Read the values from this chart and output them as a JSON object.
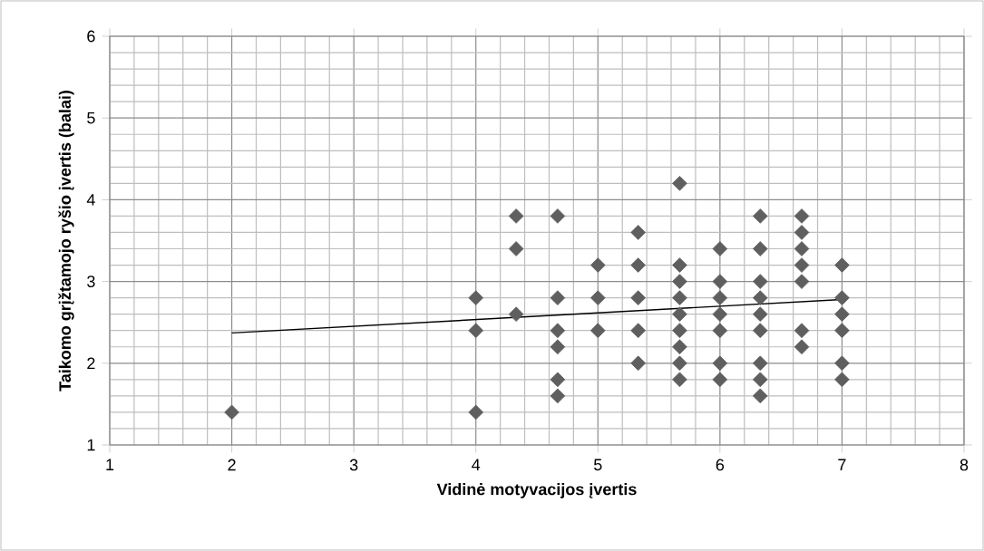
{
  "chart_data": {
    "type": "scatter",
    "xlabel": "Vidinė motyvacijos įvertis",
    "ylabel": "Taikomo grįžtamojo ryšio įvertis (balai)",
    "xlim": [
      1,
      8
    ],
    "ylim": [
      1,
      6
    ],
    "xticks": [
      1,
      2,
      3,
      4,
      5,
      6,
      7,
      8
    ],
    "yticks": [
      1,
      2,
      3,
      4,
      5,
      6
    ],
    "grid": true,
    "series": [
      {
        "color": "#5f5f5f",
        "marker": "diamond",
        "x": [
          2,
          4,
          4,
          4,
          4.33,
          4.33,
          4.33,
          4.67,
          4.67,
          4.67,
          4.67,
          4.67,
          4.67,
          5,
          5,
          5,
          5.33,
          5.33,
          5.33,
          5.33,
          5.33,
          5.67,
          5.67,
          5.67,
          5.67,
          5.67,
          5.67,
          5.67,
          5.67,
          5.67,
          6,
          6,
          6,
          6,
          6,
          6,
          6,
          6.33,
          6.33,
          6.33,
          6.33,
          6.33,
          6.33,
          6.33,
          6.33,
          6.33,
          6.67,
          6.67,
          6.67,
          6.67,
          6.67,
          6.67,
          6.67,
          7,
          7,
          7,
          7,
          7,
          7
        ],
        "values": [
          1.4,
          2.8,
          2.4,
          1.4,
          3.8,
          3.4,
          2.6,
          3.8,
          2.8,
          2.4,
          2.2,
          1.8,
          1.6,
          3.2,
          2.8,
          2.4,
          3.6,
          3.2,
          2.8,
          2.4,
          2.0,
          4.2,
          3.2,
          3.0,
          2.8,
          2.6,
          2.4,
          2.2,
          2.0,
          1.8,
          3.4,
          3.0,
          2.8,
          2.6,
          2.4,
          2.0,
          1.8,
          3.8,
          3.4,
          3.0,
          2.8,
          2.6,
          2.4,
          2.0,
          1.8,
          1.6,
          3.8,
          3.6,
          3.4,
          3.2,
          3.0,
          2.4,
          2.2,
          3.2,
          2.8,
          2.6,
          2.4,
          2.0,
          1.8
        ]
      },
      {
        "type": "line",
        "color": "#000000",
        "marker": "none",
        "line_style": "solid",
        "x": [
          2,
          7
        ],
        "values": [
          2.37,
          2.78
        ]
      }
    ]
  }
}
